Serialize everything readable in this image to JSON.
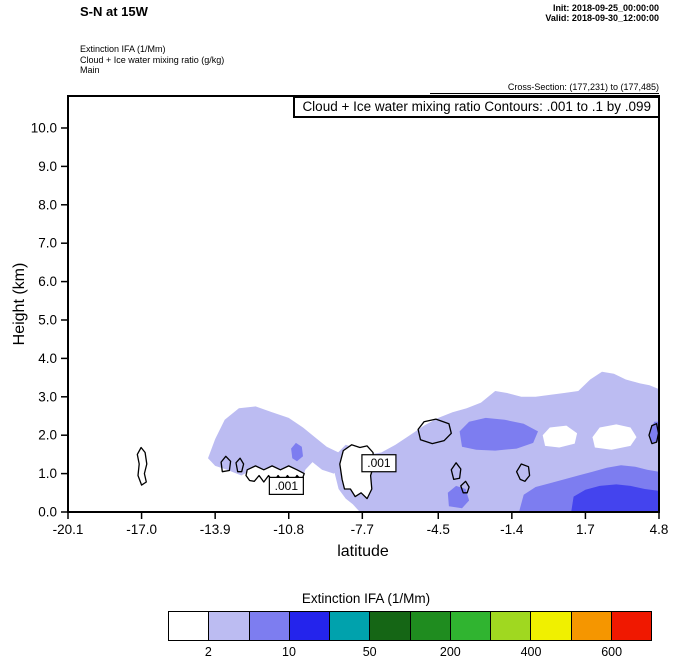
{
  "header": {
    "title": "S-N at 15W",
    "init": "Init: 2018-09-25_00:00:00",
    "valid": "Valid: 2018-09-30_12:00:00",
    "field1": "Extinction IFA  (1/Mm)",
    "field2": "Cloud + Ice water mixing ratio  (g/kg)",
    "field3": "Main",
    "cross_section": "Cross-Section: (177,231) to (177,485)"
  },
  "chart_data": {
    "type": "heatmap",
    "subtype": "filled-contour-cross-section",
    "contour_info_box": "Cloud + Ice water mixing ratio Contours: .001 to .1 by .099",
    "xlabel": "latitude",
    "ylabel": "Height (km)",
    "xlim": [
      -20.1,
      4.8
    ],
    "ylim": [
      0,
      10.833
    ],
    "x_tick_values": [
      -20.1,
      -17.0,
      -13.9,
      -10.8,
      -7.7,
      -4.5,
      -1.4,
      1.7,
      4.8
    ],
    "x_tick_labels": [
      "-20.1",
      "-17.0",
      "-13.9",
      "-10.8",
      "-7.7",
      "-4.5",
      "-1.4",
      "1.7",
      "4.8"
    ],
    "y_tick_values": [
      0,
      1,
      2,
      3,
      4,
      5,
      6,
      7,
      8,
      9,
      10
    ],
    "y_tick_labels": [
      "0.0",
      "1.0",
      "2.0",
      "3.0",
      "4.0",
      "5.0",
      "6.0",
      "7.0",
      "8.0",
      "9.0",
      "10.0"
    ],
    "shading_legend": "Extinction IFA shading: pale lavender ~2-10, medium blue ~10-50, vivid blue ~50-200 (1/Mm)",
    "shaded_regions": [
      {
        "name": "cloud-left-lavender",
        "color": "#bcbcf2",
        "points": [
          [
            -14.2,
            1.4
          ],
          [
            -13.9,
            1.9
          ],
          [
            -13.5,
            2.4
          ],
          [
            -12.9,
            2.7
          ],
          [
            -12.2,
            2.75
          ],
          [
            -11.5,
            2.6
          ],
          [
            -10.8,
            2.45
          ],
          [
            -10.2,
            2.2
          ],
          [
            -9.7,
            1.95
          ],
          [
            -9.2,
            1.7
          ],
          [
            -8.7,
            1.55
          ],
          [
            -8.5,
            1.25
          ],
          [
            -8.9,
            1.0
          ],
          [
            -9.4,
            1.1
          ],
          [
            -9.8,
            1.3
          ],
          [
            -10.1,
            1.1
          ],
          [
            -10.3,
            0.7
          ],
          [
            -10.6,
            0.6
          ],
          [
            -10.8,
            0.9
          ],
          [
            -11.2,
            1.05
          ],
          [
            -11.7,
            0.9
          ],
          [
            -12.2,
            1.15
          ],
          [
            -12.8,
            0.95
          ],
          [
            -13.4,
            1.1
          ],
          [
            -13.9,
            1.2
          ]
        ]
      },
      {
        "name": "cloud-main-lavender",
        "color": "#bcbcf2",
        "points": [
          [
            -8.7,
            0.6
          ],
          [
            -8.9,
            1.1
          ],
          [
            -8.8,
            1.5
          ],
          [
            -8.4,
            1.75
          ],
          [
            -7.9,
            1.65
          ],
          [
            -7.4,
            1.5
          ],
          [
            -6.9,
            1.55
          ],
          [
            -6.3,
            1.75
          ],
          [
            -5.7,
            2.0
          ],
          [
            -5.1,
            2.25
          ],
          [
            -4.5,
            2.45
          ],
          [
            -3.9,
            2.6
          ],
          [
            -3.3,
            2.7
          ],
          [
            -2.7,
            2.85
          ],
          [
            -2.1,
            3.15
          ],
          [
            -1.6,
            3.1
          ],
          [
            -1.0,
            3.0
          ],
          [
            -0.4,
            3.0
          ],
          [
            0.2,
            3.05
          ],
          [
            0.8,
            3.1
          ],
          [
            1.4,
            3.15
          ],
          [
            1.9,
            3.45
          ],
          [
            2.4,
            3.65
          ],
          [
            2.9,
            3.6
          ],
          [
            3.4,
            3.45
          ],
          [
            4.0,
            3.35
          ],
          [
            4.4,
            3.3
          ],
          [
            4.8,
            3.2
          ],
          [
            4.8,
            0.0
          ],
          [
            -7.8,
            0.0
          ],
          [
            -8.1,
            0.2
          ],
          [
            -8.4,
            0.35
          ]
        ]
      },
      {
        "name": "white-hole-1",
        "color": "#ffffff",
        "points": [
          [
            0.0,
            1.72
          ],
          [
            -0.1,
            2.0
          ],
          [
            0.2,
            2.2
          ],
          [
            0.9,
            2.25
          ],
          [
            1.35,
            2.05
          ],
          [
            1.25,
            1.78
          ],
          [
            0.6,
            1.68
          ]
        ]
      },
      {
        "name": "white-hole-2",
        "color": "#ffffff",
        "points": [
          [
            2.1,
            1.68
          ],
          [
            2.0,
            1.95
          ],
          [
            2.3,
            2.2
          ],
          [
            3.0,
            2.28
          ],
          [
            3.6,
            2.2
          ],
          [
            3.85,
            1.95
          ],
          [
            3.6,
            1.72
          ],
          [
            2.8,
            1.62
          ]
        ]
      },
      {
        "name": "medium-patch-small-left",
        "color": "#7d7df0",
        "points": [
          [
            -10.65,
            1.4
          ],
          [
            -10.7,
            1.65
          ],
          [
            -10.5,
            1.8
          ],
          [
            -10.25,
            1.7
          ],
          [
            -10.2,
            1.45
          ],
          [
            -10.45,
            1.32
          ]
        ]
      },
      {
        "name": "medium-patch-center",
        "color": "#7d7df0",
        "points": [
          [
            -3.5,
            1.7
          ],
          [
            -3.6,
            2.1
          ],
          [
            -3.2,
            2.35
          ],
          [
            -2.5,
            2.45
          ],
          [
            -1.7,
            2.4
          ],
          [
            -0.9,
            2.3
          ],
          [
            -0.3,
            2.1
          ],
          [
            -0.5,
            1.8
          ],
          [
            -1.2,
            1.65
          ],
          [
            -2.1,
            1.6
          ],
          [
            -2.9,
            1.62
          ]
        ]
      },
      {
        "name": "medium-patch-bottom-right",
        "color": "#7d7df0",
        "points": [
          [
            -1.1,
            0.0
          ],
          [
            -0.9,
            0.45
          ],
          [
            -0.4,
            0.65
          ],
          [
            0.2,
            0.75
          ],
          [
            0.8,
            0.85
          ],
          [
            1.4,
            0.95
          ],
          [
            2.0,
            1.05
          ],
          [
            2.6,
            1.15
          ],
          [
            3.2,
            1.22
          ],
          [
            3.8,
            1.18
          ],
          [
            4.3,
            1.1
          ],
          [
            4.8,
            1.05
          ],
          [
            4.8,
            0.0
          ]
        ]
      },
      {
        "name": "medium-patch-small-bottom",
        "color": "#7d7df0",
        "points": [
          [
            -4.05,
            0.15
          ],
          [
            -4.1,
            0.5
          ],
          [
            -3.75,
            0.68
          ],
          [
            -3.35,
            0.6
          ],
          [
            -3.2,
            0.3
          ],
          [
            -3.5,
            0.1
          ]
        ]
      },
      {
        "name": "medium-patch-right-edge",
        "color": "#7d7df0",
        "points": [
          [
            4.45,
            1.8
          ],
          [
            4.4,
            2.1
          ],
          [
            4.6,
            2.35
          ],
          [
            4.8,
            2.35
          ],
          [
            4.8,
            1.85
          ]
        ]
      },
      {
        "name": "vivid-patch-bottom-right",
        "color": "#4444ee",
        "points": [
          [
            1.1,
            0.0
          ],
          [
            1.2,
            0.4
          ],
          [
            1.7,
            0.58
          ],
          [
            2.3,
            0.68
          ],
          [
            3.0,
            0.72
          ],
          [
            3.6,
            0.68
          ],
          [
            4.2,
            0.6
          ],
          [
            4.8,
            0.55
          ],
          [
            4.8,
            0.0
          ]
        ]
      }
    ],
    "contour_lines": [
      {
        "name": "loop-far-left",
        "fill": "none",
        "points": [
          [
            -17.0,
            0.7
          ],
          [
            -17.15,
            0.95
          ],
          [
            -17.1,
            1.25
          ],
          [
            -17.18,
            1.5
          ],
          [
            -17.02,
            1.68
          ],
          [
            -16.85,
            1.55
          ],
          [
            -16.78,
            1.25
          ],
          [
            -16.88,
            1.0
          ],
          [
            -16.8,
            0.78
          ]
        ]
      },
      {
        "name": "small-loop-a",
        "fill": "none",
        "points": [
          [
            -13.6,
            1.05
          ],
          [
            -13.65,
            1.3
          ],
          [
            -13.45,
            1.45
          ],
          [
            -13.25,
            1.32
          ],
          [
            -13.3,
            1.08
          ]
        ]
      },
      {
        "name": "small-loop-b",
        "fill": "none",
        "points": [
          [
            -12.95,
            1.05
          ],
          [
            -13.02,
            1.28
          ],
          [
            -12.85,
            1.4
          ],
          [
            -12.7,
            1.25
          ],
          [
            -12.78,
            1.05
          ]
        ]
      },
      {
        "name": "scalloped-band",
        "fill": "#ffffff",
        "points": [
          [
            -12.6,
            0.95
          ],
          [
            -12.55,
            1.1
          ],
          [
            -12.2,
            1.2
          ],
          [
            -11.85,
            1.1
          ],
          [
            -11.5,
            1.2
          ],
          [
            -11.15,
            1.1
          ],
          [
            -10.8,
            1.2
          ],
          [
            -10.45,
            1.1
          ],
          [
            -10.15,
            1.0
          ],
          [
            -10.25,
            0.82
          ],
          [
            -10.45,
            0.95
          ],
          [
            -10.65,
            0.78
          ],
          [
            -10.85,
            0.95
          ],
          [
            -11.05,
            0.78
          ],
          [
            -11.25,
            0.95
          ],
          [
            -11.45,
            0.78
          ],
          [
            -11.65,
            0.95
          ],
          [
            -11.85,
            0.78
          ],
          [
            -12.05,
            0.95
          ],
          [
            -12.25,
            0.8
          ],
          [
            -12.45,
            0.82
          ]
        ]
      },
      {
        "name": "blob-center-left",
        "fill": "#ffffff",
        "points": [
          [
            -8.55,
            0.85
          ],
          [
            -8.65,
            1.25
          ],
          [
            -8.5,
            1.6
          ],
          [
            -8.15,
            1.75
          ],
          [
            -7.8,
            1.68
          ],
          [
            -7.5,
            1.72
          ],
          [
            -7.25,
            1.55
          ],
          [
            -7.2,
            1.25
          ],
          [
            -7.35,
            0.95
          ],
          [
            -7.3,
            0.6
          ],
          [
            -7.5,
            0.35
          ],
          [
            -7.75,
            0.5
          ],
          [
            -8.0,
            0.4
          ],
          [
            -8.2,
            0.6
          ],
          [
            -8.45,
            0.6
          ]
        ]
      },
      {
        "name": "loop-mid",
        "fill": "none",
        "points": [
          [
            -5.25,
            1.88
          ],
          [
            -5.35,
            2.15
          ],
          [
            -5.1,
            2.35
          ],
          [
            -4.6,
            2.42
          ],
          [
            -4.05,
            2.3
          ],
          [
            -3.95,
            2.05
          ],
          [
            -4.25,
            1.86
          ],
          [
            -4.75,
            1.78
          ]
        ]
      },
      {
        "name": "small-loop-c",
        "fill": "none",
        "points": [
          [
            -3.85,
            0.85
          ],
          [
            -3.95,
            1.1
          ],
          [
            -3.75,
            1.28
          ],
          [
            -3.55,
            1.12
          ],
          [
            -3.6,
            0.88
          ]
        ]
      },
      {
        "name": "small-loop-d",
        "fill": "none",
        "points": [
          [
            -3.45,
            0.5
          ],
          [
            -3.55,
            0.68
          ],
          [
            -3.35,
            0.8
          ],
          [
            -3.2,
            0.65
          ],
          [
            -3.28,
            0.5
          ]
        ]
      },
      {
        "name": "small-loop-e",
        "fill": "none",
        "points": [
          [
            -1.05,
            0.85
          ],
          [
            -1.2,
            1.05
          ],
          [
            -1.0,
            1.25
          ],
          [
            -0.7,
            1.18
          ],
          [
            -0.65,
            0.95
          ],
          [
            -0.85,
            0.8
          ]
        ]
      },
      {
        "name": "loop-right-edge",
        "fill": "none",
        "points": [
          [
            4.5,
            1.78
          ],
          [
            4.38,
            2.0
          ],
          [
            4.5,
            2.25
          ],
          [
            4.7,
            2.3
          ],
          [
            4.78,
            2.05
          ],
          [
            4.7,
            1.82
          ]
        ]
      }
    ],
    "contour_labels": [
      {
        "text": ".001",
        "x": -10.9,
        "y": 0.68
      },
      {
        "text": ".001",
        "x": -7.0,
        "y": 1.27
      }
    ],
    "colorbar": {
      "title": "Extinction IFA  (1/Mm)",
      "colors": [
        "#ffffff",
        "#bcbcf2",
        "#7d7df0",
        "#2424ec",
        "#00a2ad",
        "#156615",
        "#1f8c1f",
        "#30b430",
        "#a0d820",
        "#f0f000",
        "#f59600",
        "#f01800"
      ],
      "tick_labels": [
        "2",
        "10",
        "50",
        "200",
        "400",
        "600"
      ],
      "tick_boundary_indices": [
        1,
        3,
        5,
        7,
        9,
        11
      ]
    }
  }
}
